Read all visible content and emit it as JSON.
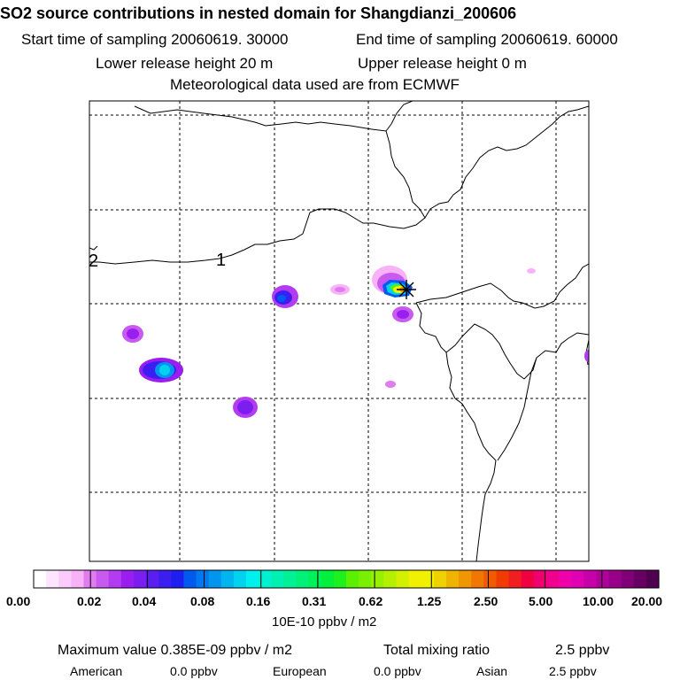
{
  "title": "SO2 source contributions in nested domain for Shangdianzi_200606",
  "sampling": {
    "start": "Start time of sampling 20060619. 30000",
    "end": "End time of sampling 20060619. 60000"
  },
  "release": {
    "lower": "Lower release height   20 m",
    "upper": "Upper release height    0 m"
  },
  "meteo": "Meteorological data used are from ECMWF",
  "map": {
    "contour_labels": [
      "1",
      "2"
    ],
    "receptor": "Shangdianzi"
  },
  "colorbar": {
    "tick_labels": [
      "0.00",
      "0.02",
      "0.04",
      "0.08",
      "0.16",
      "0.31",
      "0.62",
      "1.25",
      "2.50",
      "5.00",
      "10.00",
      "20.00"
    ],
    "colors": [
      "#ffffff",
      "#fde6fd",
      "#fbccfb",
      "#f8b3f8",
      "#e07cf0",
      "#c95af0",
      "#b33cf0",
      "#9a1ef0",
      "#7c1ef0",
      "#5a1ef0",
      "#3c1ef0",
      "#1e1ef0",
      "#005af0",
      "#0078f0",
      "#0096f0",
      "#00b4f0",
      "#00d2f0",
      "#00f0f0",
      "#00f0d2",
      "#00f0b4",
      "#00f096",
      "#00f078",
      "#00f05a",
      "#00f03c",
      "#1ef01e",
      "#5af000",
      "#78f000",
      "#96f000",
      "#b4f000",
      "#d2f000",
      "#f0f000",
      "#f0f000",
      "#f0d200",
      "#f0b400",
      "#f09600",
      "#f07800",
      "#f05a00",
      "#f03c00",
      "#f01e1e",
      "#f00040",
      "#f0006e",
      "#f0008c",
      "#f000aa",
      "#e000b4",
      "#c800aa",
      "#b0009a",
      "#98008a",
      "#800078",
      "#680064",
      "#500050"
    ],
    "unit": "10E-10 ppbv / m2"
  },
  "stats": {
    "max_value": "Maximum value  0.385E-09 ppbv / m2",
    "total_ratio_label": "Total mixing ratio",
    "total_ratio_value": "2.5 ppbv",
    "regions": [
      {
        "name": "American",
        "value": "0.0 ppbv"
      },
      {
        "name": "European",
        "value": "0.0 ppbv"
      },
      {
        "name": "Asian",
        "value": "2.5 ppbv"
      }
    ]
  }
}
